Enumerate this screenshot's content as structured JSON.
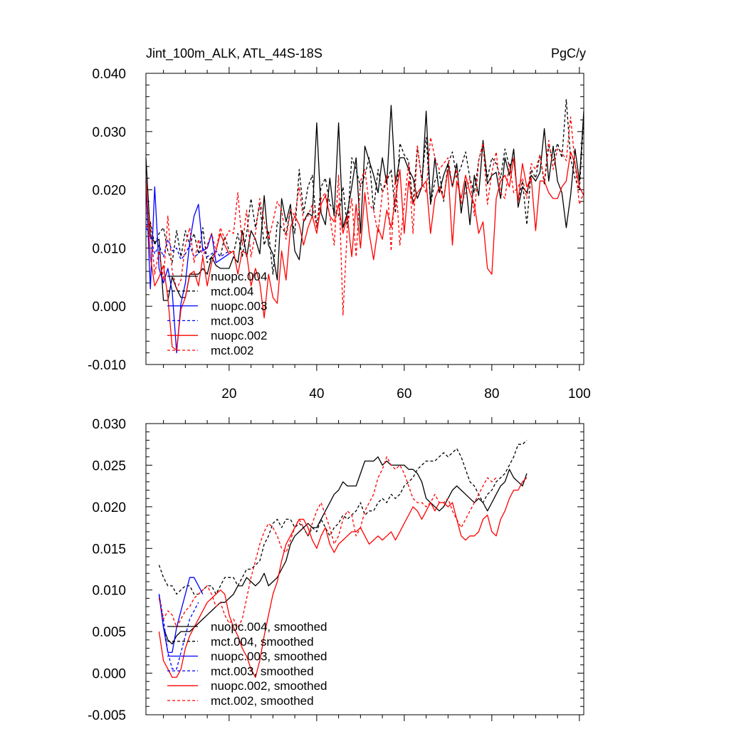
{
  "colors": {
    "nuopc004": "#000000",
    "mct004": "#000000",
    "nuopc003": "#0000ff",
    "mct003": "#0000ff",
    "nuopc002": "#ff0000",
    "mct002": "#ff0000"
  },
  "chart_data": [
    {
      "type": "line",
      "title": "Jint_100m_ALK, ATL_44S-18S",
      "units": "PgC/y",
      "xlabel": "",
      "ylabel": "",
      "xlim": [
        1,
        101
      ],
      "ylim": [
        -0.01,
        0.04
      ],
      "yticks": [
        "0.040",
        "0.030",
        "0.020",
        "0.010",
        "0.000",
        "-0.010"
      ],
      "ytick_values": [
        0.04,
        0.03,
        0.02,
        0.01,
        0.0,
        -0.01
      ],
      "xticks": [
        "20",
        "40",
        "60",
        "80",
        "100"
      ],
      "xtick_values": [
        20,
        40,
        60,
        80,
        100
      ],
      "legend": [
        "nuopc.004",
        "mct.004",
        "nuopc.003",
        "mct.003",
        "nuopc.002",
        "mct.002"
      ],
      "series": [
        {
          "name": "nuopc.004",
          "color": "nuopc004",
          "dash": false,
          "x0": 1,
          "values": [
            0.0255,
            0.012,
            0.011,
            0.0115,
            0.001,
            0.001,
            0.005,
            0.003,
            0.0015,
            0.0015,
            0.0055,
            0.0055,
            0.0055,
            0.0065,
            0.0055,
            0.0085,
            0.007,
            0.0065,
            0.0065,
            0.0065,
            0.0085,
            0.0075,
            0.013,
            0.0085,
            0.013,
            0.0115,
            0.009,
            0.019,
            0.0105,
            0.009,
            0.0045,
            0.0185,
            0.0145,
            0.0175,
            0.0095,
            0.008,
            0.0145,
            0.016,
            0.0155,
            0.0315,
            0.016,
            0.014,
            0.022,
            0.0155,
            0.0315,
            0.0135,
            0.016,
            0.0205,
            0.0255,
            0.0125,
            0.0275,
            0.025,
            0.0225,
            0.0195,
            0.0255,
            0.021,
            0.0345,
            0.021,
            0.0255,
            0.0255,
            0.0235,
            0.022,
            0.0185,
            0.0205,
            0.0335,
            0.0175,
            0.0255,
            0.0195,
            0.0225,
            0.0245,
            0.0205,
            0.0245,
            0.016,
            0.0215,
            0.014,
            0.0225,
            0.019,
            0.0285,
            0.021,
            0.0225,
            0.023,
            0.0185,
            0.0255,
            0.0225,
            0.027,
            0.017,
            0.0205,
            0.0195,
            0.0225,
            0.0215,
            0.023,
            0.0305,
            0.0215,
            0.0275,
            0.0215,
            0.0195,
            0.0135,
            0.019,
            0.027,
            0.0215,
            0.0335
          ]
        },
        {
          "name": "mct.004",
          "color": "mct004",
          "dash": true,
          "x0": 1,
          "values": [
            0.015,
            0.0145,
            0.0105,
            0.0125,
            0.0135,
            0.0095,
            0.0075,
            0.013,
            0.0085,
            0.013,
            0.0105,
            0.0125,
            0.009,
            0.0135,
            0.0075,
            0.0085,
            0.0095,
            0.0085,
            0.012,
            0.0095,
            0.009,
            0.0125,
            0.0085,
            0.0125,
            0.0185,
            0.0135,
            0.0175,
            0.0105,
            0.013,
            0.0055,
            0.0145,
            0.0135,
            0.0125,
            0.0165,
            0.0125,
            0.0235,
            0.016,
            0.0205,
            0.0225,
            0.0135,
            0.0205,
            0.022,
            0.0175,
            0.0165,
            0.0155,
            0.0205,
            0.0135,
            0.0255,
            0.0235,
            0.0205,
            0.0225,
            0.0255,
            0.0165,
            0.0235,
            0.0195,
            0.0215,
            0.0235,
            0.016,
            0.028,
            0.026,
            0.025,
            0.0175,
            0.0275,
            0.0215,
            0.029,
            0.0175,
            0.0215,
            0.023,
            0.018,
            0.0245,
            0.0265,
            0.022,
            0.024,
            0.0265,
            0.022,
            0.0195,
            0.025,
            0.028,
            0.022,
            0.0255,
            0.0245,
            0.022,
            0.027,
            0.024,
            0.0255,
            0.018,
            0.0215,
            0.014,
            0.0235,
            0.022,
            0.026,
            0.021,
            0.0275,
            0.025,
            0.028,
            0.0255,
            0.0355,
            0.0255,
            0.022,
            0.02,
            0.0325
          ]
        },
        {
          "name": "nuopc.003",
          "color": "nuopc003",
          "dash": false,
          "x0": 1,
          "values": [
            0.0215,
            0.003,
            0.0205,
            0.0065,
            0.004,
            0.0065,
            0.0025,
            -0.008,
            0.0005,
            0.004,
            0.011,
            0.0155,
            0.0175,
            0.0095,
            0.01,
            0.0125,
            0.0075,
            0.008,
            0.0085,
            0.009
          ]
        },
        {
          "name": "mct.003",
          "color": "mct003",
          "dash": true,
          "x0": 1,
          "values": [
            0.0135,
            0.012,
            0.009,
            0.0105,
            0.0085,
            0.0115,
            0.0095,
            0.01,
            0.008,
            0.009,
            0.0105,
            0.0085,
            0.009,
            0.01,
            0.0085,
            0.009,
            0.0095,
            0.0085,
            0.009,
            0.0095
          ]
        },
        {
          "name": "nuopc.002",
          "color": "nuopc002",
          "dash": false,
          "x0": 1,
          "values": [
            0.022,
            0.0085,
            0.0035,
            0.005,
            0.007,
            0.0015,
            -0.007,
            -0.0075,
            -0.0005,
            0.0015,
            0.0055,
            0.006,
            0.0035,
            0.0085,
            0.0035,
            0.0075,
            0.0095,
            0.0125,
            0.0105,
            0.009,
            0.0095,
            0.0055,
            0.0095,
            0.009,
            0.0035,
            0.0065,
            0.004,
            -0.002,
            0.0055,
            0.0015,
            0.0005,
            0.0095,
            0.0045,
            0.0135,
            0.0155,
            0.014,
            0.0105,
            0.0135,
            0.0155,
            0.0125,
            0.0175,
            0.019,
            0.0155,
            0.0145,
            0.0175,
            0.0125,
            0.0155,
            0.0085,
            0.0175,
            0.01,
            0.0195,
            0.0125,
            0.008,
            0.0135,
            0.0115,
            0.0165,
            0.0135,
            0.0185,
            0.0235,
            0.0125,
            0.0215,
            0.0175,
            0.0195,
            0.0205,
            0.0215,
            0.0125,
            0.0185,
            0.0205,
            0.0185,
            0.0235,
            0.0105,
            0.0215,
            0.0185,
            0.0225,
            0.0195,
            0.0175,
            0.0125,
            0.0145,
            0.0065,
            0.0055,
            0.0185,
            0.0215,
            0.0225,
            0.0205,
            0.0255,
            0.018,
            0.0245,
            0.0205,
            0.022,
            0.013,
            0.0215,
            0.0215,
            0.0195,
            0.0185,
            0.0185,
            0.0205,
            0.0215,
            0.0265,
            0.0245,
            0.0205,
            0.019
          ]
        },
        {
          "name": "mct.002",
          "color": "mct002",
          "dash": true,
          "x0": 1,
          "values": [
            0.0135,
            0.0145,
            0.0055,
            0.0095,
            0.0045,
            0.0155,
            0.006,
            0.003,
            0.0045,
            0.0105,
            0.0135,
            0.0075,
            0.0115,
            0.0085,
            0.0105,
            0.0125,
            0.0095,
            0.0135,
            0.0115,
            0.013,
            0.0125,
            0.0195,
            0.0105,
            0.0165,
            0.0085,
            0.0125,
            0.0185,
            0.0145,
            0.0115,
            0.0145,
            0.018,
            0.0165,
            0.0115,
            0.0165,
            0.0155,
            0.0205,
            0.0145,
            0.0155,
            0.0175,
            0.0135,
            0.0185,
            0.0195,
            0.0155,
            0.0105,
            0.0225,
            -0.0015,
            0.0135,
            0.0185,
            0.0085,
            0.0215,
            0.0235,
            0.0175,
            0.0165,
            0.0125,
            0.0195,
            0.0225,
            0.0095,
            0.0225,
            0.0105,
            0.0175,
            0.0245,
            0.0125,
            0.0275,
            0.0215,
            0.0195,
            0.029,
            0.0255,
            0.0235,
            0.0245,
            0.0255,
            0.0205,
            0.0235,
            0.0175,
            0.0195,
            0.022,
            0.0155,
            0.025,
            0.028,
            0.0175,
            0.023,
            0.0265,
            0.0195,
            0.0185,
            0.0245,
            0.0195,
            0.0205,
            0.022,
            0.0185,
            0.0245,
            0.0235,
            0.026,
            0.0215,
            0.0285,
            0.0235,
            0.027,
            0.0265,
            0.025,
            0.0325,
            0.0245,
            0.0175,
            0.0195
          ]
        }
      ]
    },
    {
      "type": "line",
      "title": "",
      "xlabel": "",
      "ylabel": "",
      "xlim": [
        1,
        101
      ],
      "ylim": [
        -0.005,
        0.03
      ],
      "yticks": [
        "0.030",
        "0.025",
        "0.020",
        "0.015",
        "0.010",
        "0.005",
        "0.000",
        "-0.005"
      ],
      "ytick_values": [
        0.03,
        0.025,
        0.02,
        0.015,
        0.01,
        0.005,
        0.0,
        -0.005
      ],
      "xtick_values": [
        20,
        40,
        60,
        80,
        100
      ],
      "legend": [
        "nuopc.004, smoothed",
        "mct.004, smoothed",
        "nuopc.003, smoothed",
        "mct.003, smoothed",
        "nuopc.002, smoothed",
        "mct.002, smoothed"
      ],
      "series": [
        {
          "name": "nuopc.004, smoothed",
          "color": "nuopc004",
          "dash": false,
          "x0": 4,
          "values": [
            0.0095,
            0.0055,
            0.004,
            0.0035,
            0.0045,
            0.005,
            0.005,
            0.005,
            0.0055,
            0.006,
            0.0065,
            0.007,
            0.0075,
            0.008,
            0.0085,
            0.0085,
            0.009,
            0.0095,
            0.0105,
            0.0105,
            0.0115,
            0.011,
            0.0105,
            0.011,
            0.012,
            0.0105,
            0.011,
            0.0115,
            0.0125,
            0.0135,
            0.0155,
            0.0165,
            0.017,
            0.0175,
            0.018,
            0.0175,
            0.0175,
            0.0185,
            0.0195,
            0.0205,
            0.0215,
            0.022,
            0.023,
            0.0225,
            0.0225,
            0.0225,
            0.024,
            0.0255,
            0.0255,
            0.0255,
            0.026,
            0.025,
            0.0255,
            0.025,
            0.025,
            0.025,
            0.025,
            0.0245,
            0.0245,
            0.024,
            0.023,
            0.021,
            0.0205,
            0.02,
            0.0195,
            0.02,
            0.021,
            0.022,
            0.0225,
            0.022,
            0.0215,
            0.021,
            0.0205,
            0.021,
            0.0205,
            0.0195,
            0.0205,
            0.0215,
            0.0225,
            0.023,
            0.0245,
            0.0235,
            0.023,
            0.0225,
            0.024
          ]
        },
        {
          "name": "mct.004, smoothed",
          "color": "mct004",
          "dash": true,
          "x0": 4,
          "values": [
            0.013,
            0.0115,
            0.0105,
            0.0105,
            0.0095,
            0.01,
            0.0105,
            0.0105,
            0.0095,
            0.0095,
            0.01,
            0.0105,
            0.0105,
            0.0095,
            0.0105,
            0.0115,
            0.0115,
            0.0115,
            0.0105,
            0.0115,
            0.0125,
            0.0125,
            0.013,
            0.0135,
            0.0155,
            0.0165,
            0.018,
            0.0185,
            0.0175,
            0.0185,
            0.0185,
            0.0175,
            0.018,
            0.0175,
            0.0165,
            0.0175,
            0.017,
            0.0185,
            0.0175,
            0.0165,
            0.0175,
            0.018,
            0.019,
            0.0185,
            0.019,
            0.0195,
            0.0205,
            0.019,
            0.0195,
            0.0195,
            0.0205,
            0.021,
            0.0205,
            0.0215,
            0.021,
            0.0215,
            0.0225,
            0.023,
            0.0235,
            0.0245,
            0.025,
            0.0255,
            0.0255,
            0.0255,
            0.026,
            0.0265,
            0.026,
            0.0265,
            0.027,
            0.026,
            0.0245,
            0.023,
            0.0225,
            0.0215,
            0.0205,
            0.0215,
            0.022,
            0.023,
            0.0235,
            0.024,
            0.025,
            0.026,
            0.0275,
            0.0275,
            0.028
          ]
        },
        {
          "name": "nuopc.003, smoothed",
          "color": "nuopc003",
          "dash": false,
          "x0": 4,
          "values": [
            0.0095,
            0.0055,
            0.0025,
            0.0025,
            0.0055,
            0.0075,
            0.0095,
            0.0115,
            0.0115,
            0.0105,
            0.0095
          ]
        },
        {
          "name": "mct.003, smoothed",
          "color": "mct003",
          "dash": true,
          "x0": 4,
          "values": [
            0.0095,
            0.0065,
            0.0025,
            0.0005,
            0.0005,
            0.0025,
            0.0045,
            0.0065,
            0.0075,
            0.0085
          ]
        },
        {
          "name": "nuopc.002, smoothed",
          "color": "nuopc002",
          "dash": false,
          "x0": 4,
          "values": [
            0.005,
            0.0015,
            0.0005,
            -0.0005,
            -0.0005,
            0.0005,
            0.003,
            0.0045,
            0.0055,
            0.0065,
            0.0075,
            0.0085,
            0.009,
            0.0095,
            0.01,
            0.0095,
            0.007,
            0.0055,
            0.0045,
            0.003,
            0.002,
            0.0005,
            -0.0005,
            0.0015,
            0.0045,
            0.007,
            0.0095,
            0.011,
            0.0135,
            0.0155,
            0.0165,
            0.0175,
            0.0185,
            0.0185,
            0.0175,
            0.016,
            0.015,
            0.0165,
            0.0175,
            0.0155,
            0.0145,
            0.0155,
            0.016,
            0.0165,
            0.017,
            0.017,
            0.0175,
            0.0165,
            0.0155,
            0.016,
            0.0165,
            0.016,
            0.0165,
            0.017,
            0.016,
            0.017,
            0.018,
            0.019,
            0.02,
            0.0195,
            0.0185,
            0.0195,
            0.0205,
            0.0195,
            0.0205,
            0.0205,
            0.02,
            0.0205,
            0.0185,
            0.0165,
            0.016,
            0.0165,
            0.0165,
            0.017,
            0.0185,
            0.019,
            0.017,
            0.0165,
            0.0185,
            0.0195,
            0.021,
            0.022,
            0.022,
            0.023,
            0.0235
          ]
        },
        {
          "name": "mct.002, smoothed",
          "color": "mct002",
          "dash": true,
          "x0": 4,
          "values": [
            0.009,
            0.0065,
            0.0075,
            0.007,
            0.0055,
            0.0065,
            0.0075,
            0.008,
            0.009,
            0.0095,
            0.01,
            0.0105,
            0.0095,
            0.008,
            0.0085,
            0.007,
            0.006,
            0.0065,
            0.0055,
            0.0065,
            0.009,
            0.0115,
            0.0135,
            0.0155,
            0.017,
            0.018,
            0.0175,
            0.0165,
            0.015,
            0.0145,
            0.016,
            0.0175,
            0.0185,
            0.0175,
            0.0165,
            0.018,
            0.0195,
            0.0205,
            0.019,
            0.0175,
            0.0155,
            0.0165,
            0.0185,
            0.0195,
            0.019,
            0.0165,
            0.0175,
            0.0195,
            0.0205,
            0.0215,
            0.0235,
            0.0245,
            0.026,
            0.025,
            0.0245,
            0.025,
            0.024,
            0.0225,
            0.021,
            0.0205,
            0.0205,
            0.02,
            0.0205,
            0.0215,
            0.0205,
            0.0205,
            0.021,
            0.0195,
            0.0185,
            0.0175,
            0.0185,
            0.0195,
            0.0205,
            0.0215,
            0.0225,
            0.0235,
            0.023,
            0.0235
          ]
        }
      ]
    }
  ]
}
